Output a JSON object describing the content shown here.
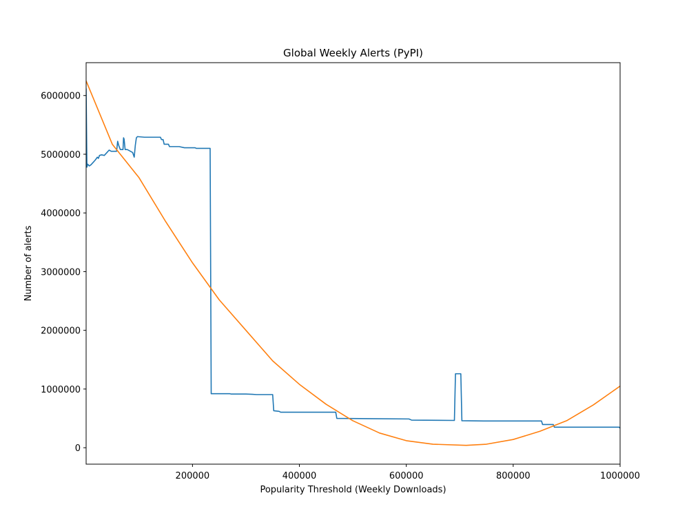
{
  "chart_data": {
    "type": "line",
    "title": "Global Weekly Alerts (PyPI)",
    "xlabel": "Popularity Threshold (Weekly Downloads)",
    "ylabel": "Number of alerts",
    "xlim": [
      1000,
      1000000
    ],
    "ylim": [
      -280000,
      6560000
    ],
    "x_ticks": [
      200000,
      400000,
      600000,
      800000,
      1000000
    ],
    "x_tick_labels": [
      "200000",
      "400000",
      "600000",
      "800000",
      "1000000"
    ],
    "y_ticks": [
      0,
      1000000,
      2000000,
      3000000,
      4000000,
      5000000,
      6000000
    ],
    "y_tick_labels": [
      "0",
      "1000000",
      "2000000",
      "3000000",
      "4000000",
      "5000000",
      "6000000"
    ],
    "grid": false,
    "legend": "none",
    "series": [
      {
        "color": "#1f77b4",
        "points": [
          [
            1000,
            6120000
          ],
          [
            2500,
            4780000
          ],
          [
            4000,
            4830000
          ],
          [
            7000,
            4800000
          ],
          [
            10000,
            4820000
          ],
          [
            14000,
            4860000
          ],
          [
            18000,
            4900000
          ],
          [
            22000,
            4950000
          ],
          [
            24000,
            4930000
          ],
          [
            26000,
            4980000
          ],
          [
            30000,
            4990000
          ],
          [
            35000,
            4980000
          ],
          [
            40000,
            5030000
          ],
          [
            44000,
            5070000
          ],
          [
            48000,
            5050000
          ],
          [
            52000,
            5050000
          ],
          [
            58000,
            5050000
          ],
          [
            60000,
            5220000
          ],
          [
            62000,
            5150000
          ],
          [
            65000,
            5080000
          ],
          [
            70000,
            5080000
          ],
          [
            71000,
            5280000
          ],
          [
            72000,
            5260000
          ],
          [
            74000,
            5080000
          ],
          [
            78000,
            5080000
          ],
          [
            84000,
            5050000
          ],
          [
            88000,
            5030000
          ],
          [
            91000,
            4950000
          ],
          [
            93000,
            5150000
          ],
          [
            95000,
            5280000
          ],
          [
            97000,
            5300000
          ],
          [
            110000,
            5290000
          ],
          [
            140000,
            5290000
          ],
          [
            142000,
            5250000
          ],
          [
            145000,
            5250000
          ],
          [
            147000,
            5170000
          ],
          [
            155000,
            5170000
          ],
          [
            157000,
            5130000
          ],
          [
            175000,
            5130000
          ],
          [
            185000,
            5110000
          ],
          [
            205000,
            5110000
          ],
          [
            207000,
            5100000
          ],
          [
            233000,
            5100000
          ],
          [
            235000,
            920000
          ],
          [
            270000,
            920000
          ],
          [
            272000,
            915000
          ],
          [
            300000,
            915000
          ],
          [
            312000,
            910000
          ],
          [
            320000,
            905000
          ],
          [
            350000,
            905000
          ],
          [
            352000,
            630000
          ],
          [
            362000,
            620000
          ],
          [
            365000,
            605000
          ],
          [
            468000,
            605000
          ],
          [
            470000,
            500000
          ],
          [
            530000,
            495000
          ],
          [
            605000,
            490000
          ],
          [
            610000,
            470000
          ],
          [
            690000,
            465000
          ],
          [
            692000,
            1260000
          ],
          [
            702000,
            1260000
          ],
          [
            704000,
            460000
          ],
          [
            745000,
            455000
          ],
          [
            853000,
            455000
          ],
          [
            855000,
            395000
          ],
          [
            875000,
            395000
          ],
          [
            877000,
            350000
          ],
          [
            998000,
            350000
          ],
          [
            1000000,
            335000
          ]
        ]
      },
      {
        "color": "#ff7f0e",
        "function": "polyfit",
        "vertex": [
          712000,
          40000
        ],
        "points": [
          [
            1000,
            6250000
          ],
          [
            50000,
            5170000
          ],
          [
            100000,
            4600000
          ],
          [
            150000,
            3850000
          ],
          [
            200000,
            3150000
          ],
          [
            250000,
            2520000
          ],
          [
            300000,
            2000000
          ],
          [
            350000,
            1480000
          ],
          [
            400000,
            1080000
          ],
          [
            450000,
            740000
          ],
          [
            500000,
            460000
          ],
          [
            550000,
            250000
          ],
          [
            600000,
            120000
          ],
          [
            650000,
            60000
          ],
          [
            712000,
            40000
          ],
          [
            750000,
            60000
          ],
          [
            800000,
            140000
          ],
          [
            850000,
            280000
          ],
          [
            900000,
            460000
          ],
          [
            950000,
            730000
          ],
          [
            1000000,
            1050000
          ]
        ]
      }
    ]
  }
}
